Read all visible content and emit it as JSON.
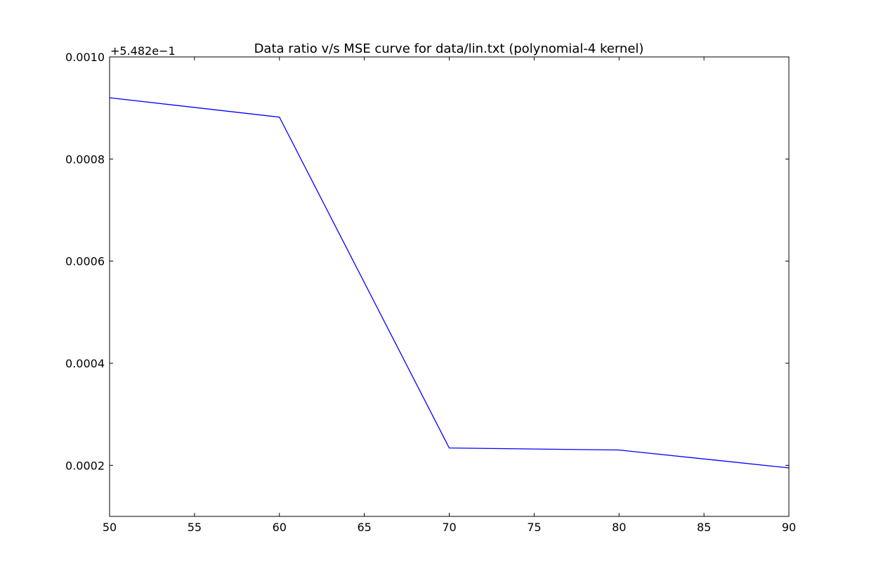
{
  "chart_data": {
    "type": "line",
    "title": "Data ratio v/s MSE curve for data/lin.txt (polynomial-4 kernel)",
    "xlabel": "",
    "ylabel": "",
    "y_offset_label": "+5.482e−1",
    "xlim": [
      50,
      90
    ],
    "ylim": [
      0.0001,
      0.001
    ],
    "x_ticks": [
      50,
      55,
      60,
      65,
      70,
      75,
      80,
      85,
      90
    ],
    "x_tick_labels": [
      "50",
      "55",
      "60",
      "65",
      "70",
      "75",
      "80",
      "85",
      "90"
    ],
    "y_ticks": [
      0.0002,
      0.0004,
      0.0006,
      0.0008,
      0.001
    ],
    "y_tick_labels": [
      "0.0002",
      "0.0004",
      "0.0006",
      "0.0008",
      "0.0010"
    ],
    "grid": false,
    "series": [
      {
        "x": [
          50,
          60,
          70,
          80,
          90
        ],
        "y": [
          0.00092,
          0.000882,
          0.000234,
          0.00023,
          0.000195
        ],
        "color": "#0000ff"
      }
    ]
  }
}
